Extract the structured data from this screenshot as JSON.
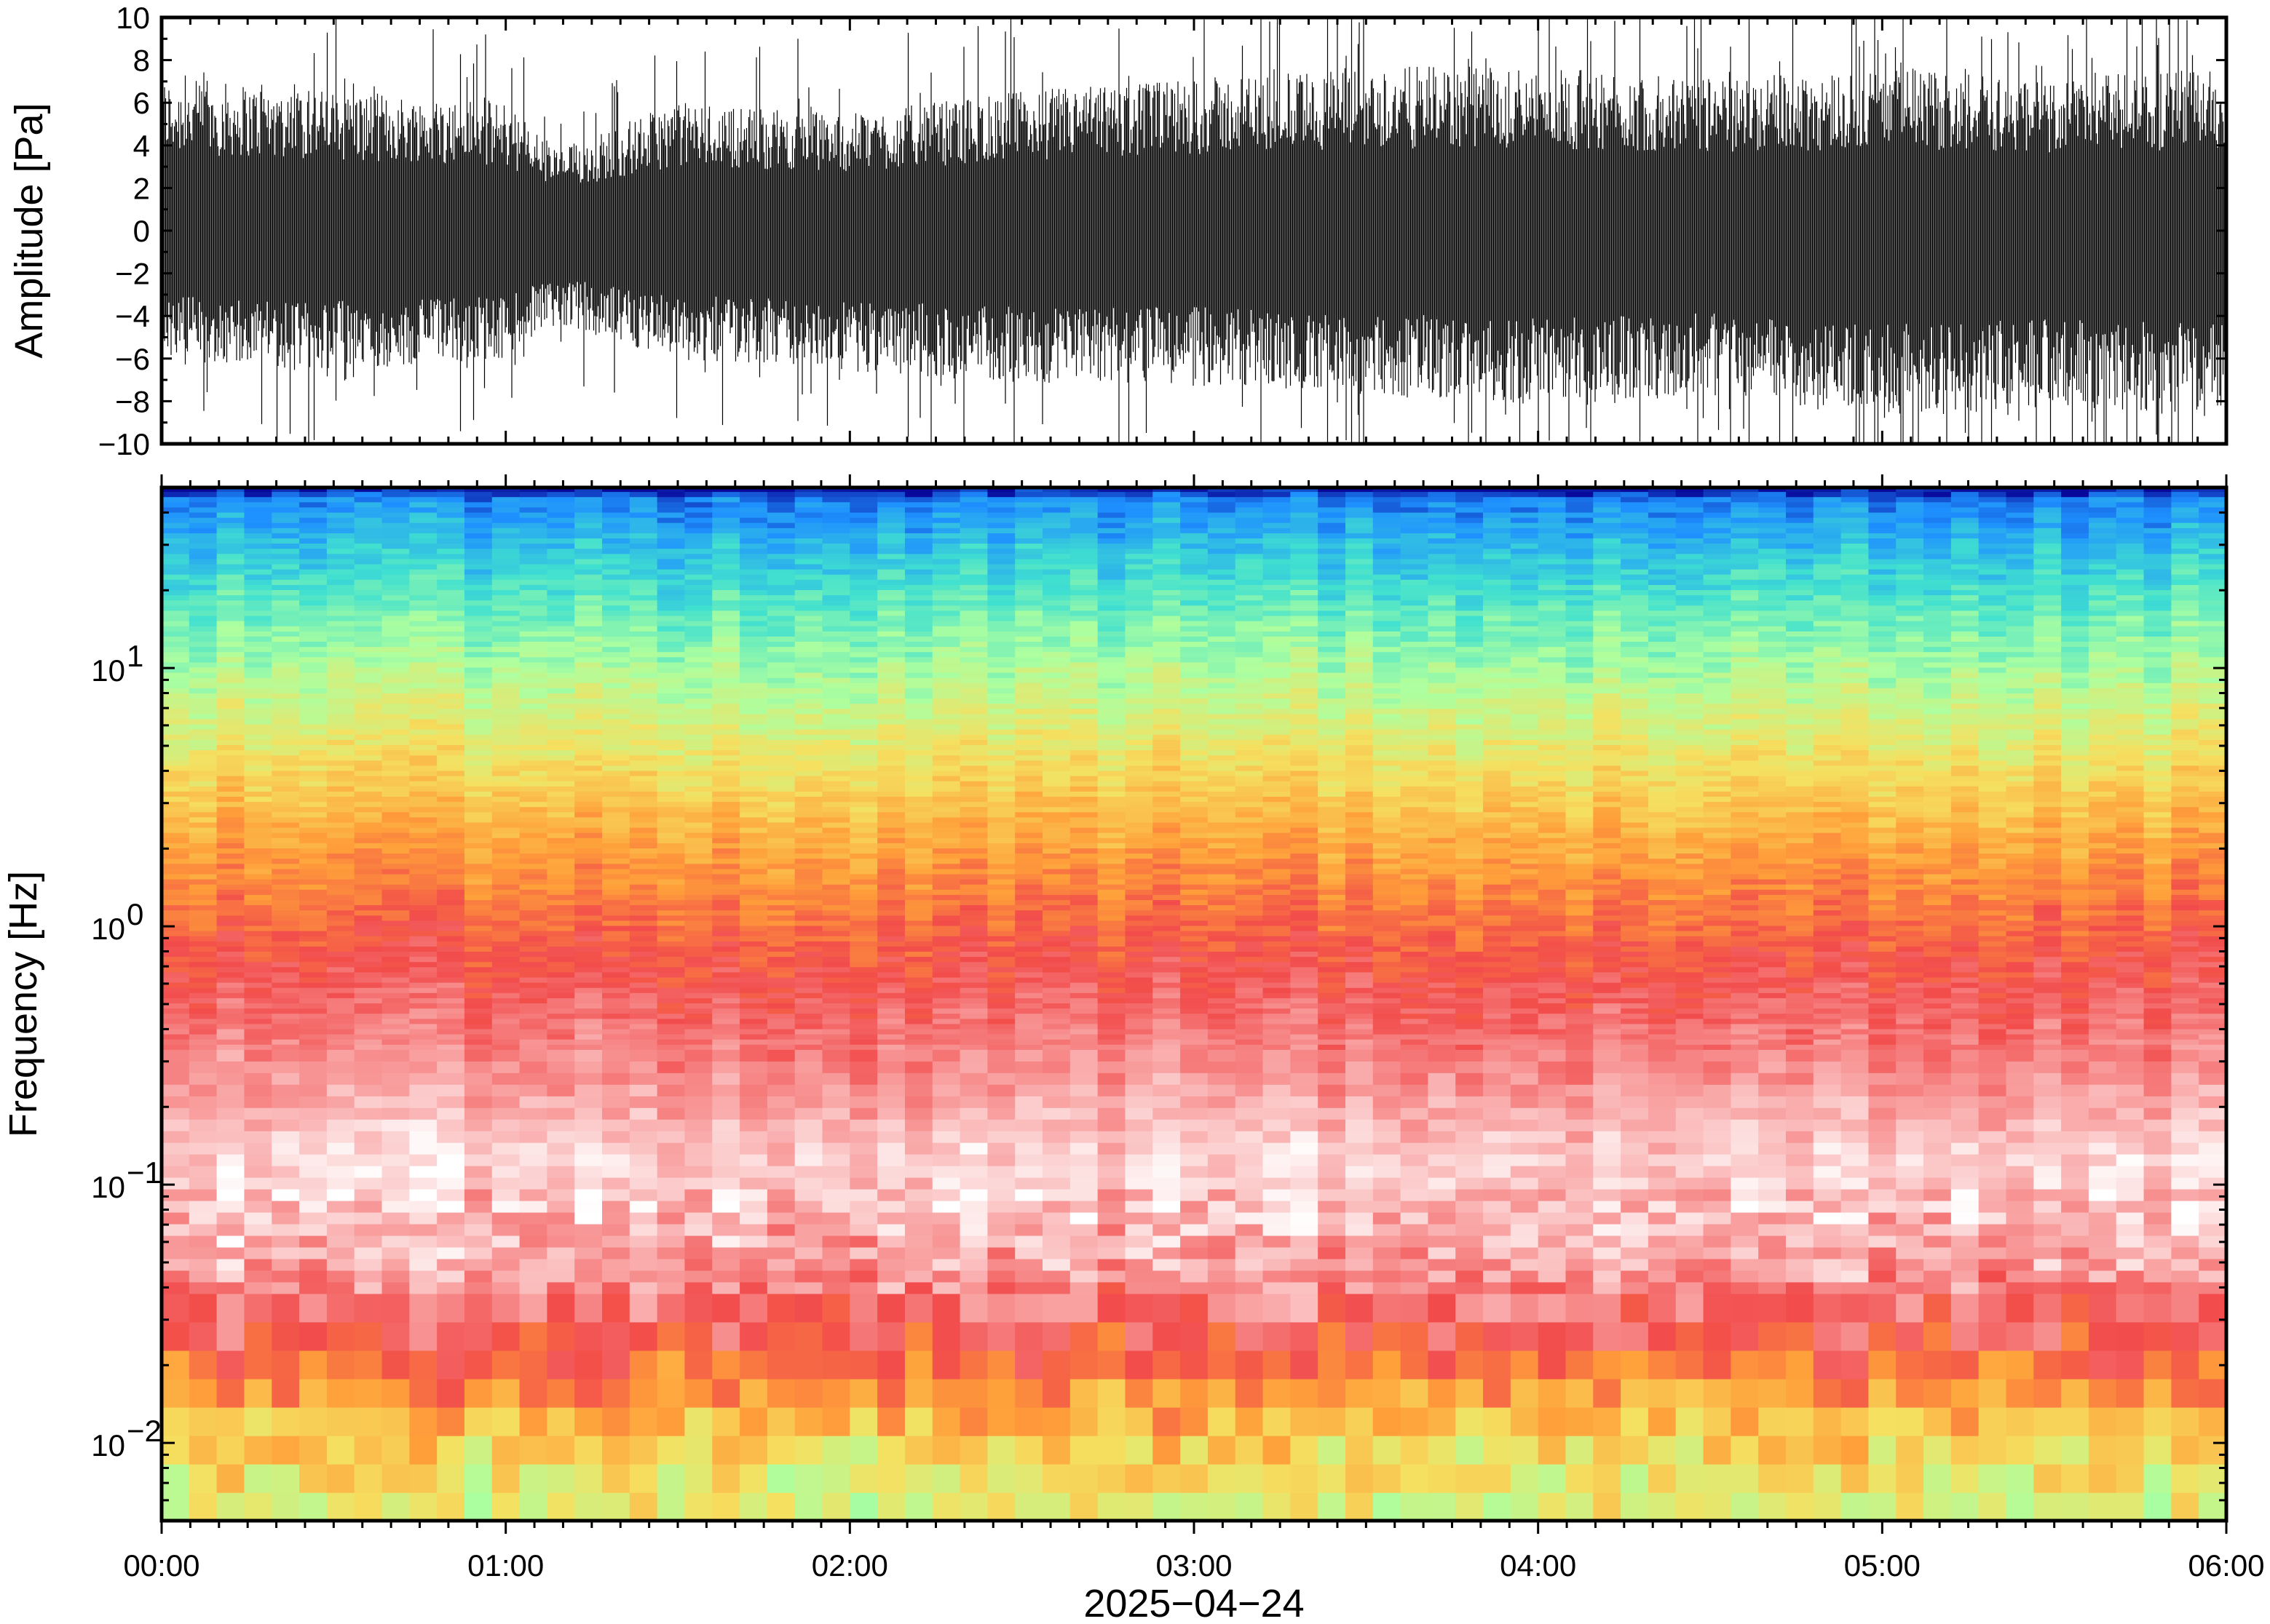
{
  "chart_data": [
    {
      "type": "line",
      "panel": "waveform",
      "ylabel": "Amplitude [Pa]",
      "ylim": [
        -10,
        10
      ],
      "y_ticks": [
        10,
        8,
        6,
        4,
        2,
        0,
        -2,
        -4,
        -6,
        -8,
        -10
      ],
      "y_tick_labels": [
        "10",
        "8",
        "6",
        "4",
        "2",
        "0",
        "−2",
        "−4",
        "−6",
        "−8",
        "−10"
      ],
      "xlim": [
        "00:00",
        "06:00"
      ],
      "series": [
        {
          "color": "#000000",
          "envelope_hours": [
            0,
            0.5,
            1.0,
            1.15,
            1.5,
            2,
            2.5,
            3,
            3.5,
            4,
            4.5,
            5,
            5.5,
            6
          ],
          "envelope_upper_pa": [
            6.5,
            6,
            5.5,
            3.5,
            5.5,
            5,
            6,
            6.5,
            7,
            7,
            6.5,
            7,
            6.5,
            7
          ],
          "envelope_lower_pa": [
            -5.5,
            -6,
            -5.5,
            -4,
            -5.5,
            -6,
            -6.5,
            -6.5,
            -7,
            -7.5,
            -7,
            -8,
            -7.5,
            -8
          ]
        }
      ]
    },
    {
      "type": "heatmap",
      "panel": "spectrogram",
      "ylabel": "Frequency [Hz]",
      "yscale": "log",
      "ylim": [
        0.005,
        50
      ],
      "y_ticks": [
        10,
        1,
        0.1,
        0.01
      ],
      "y_tick_labels": [
        {
          "base": "10",
          "exp": "1"
        },
        {
          "base": "10",
          "exp": "0"
        },
        {
          "base": "10",
          "exp": "−1"
        },
        {
          "base": "10",
          "exp": "−2"
        }
      ],
      "xlabel": "2025−04−24",
      "x_ticks": [
        "00:00",
        "01:00",
        "02:00",
        "03:00",
        "04:00",
        "05:00",
        "06:00"
      ],
      "colormap": [
        "#08089a",
        "#1e90ff",
        "#40e0d0",
        "#adff9f",
        "#f5e060",
        "#ff9f3a",
        "#f24b4b",
        "#f9a3a3",
        "#ffffff"
      ],
      "profile_freq_hz": [
        50,
        45,
        30,
        15,
        5,
        2,
        0.8,
        0.3,
        0.12,
        0.05,
        0.025,
        0.015,
        0.008,
        0.005
      ],
      "profile_colormap_index": [
        0.0,
        0.12,
        0.2,
        0.32,
        0.48,
        0.62,
        0.74,
        0.84,
        0.95,
        0.88,
        0.76,
        0.62,
        0.5,
        0.45
      ]
    }
  ]
}
